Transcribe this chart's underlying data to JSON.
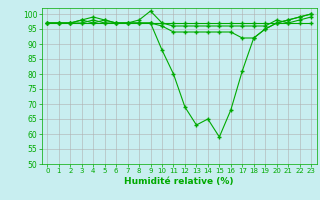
{
  "background_color": "#c8eef0",
  "grid_color": "#b0b0b0",
  "line_color": "#00aa00",
  "marker_color": "#00aa00",
  "xlabel": "Humidité relative (%)",
  "xlabel_color": "#00aa00",
  "tick_color": "#00aa00",
  "ylim": [
    50,
    102
  ],
  "xlim": [
    -0.5,
    23.5
  ],
  "yticks": [
    50,
    55,
    60,
    65,
    70,
    75,
    80,
    85,
    90,
    95,
    100
  ],
  "xticks": [
    0,
    1,
    2,
    3,
    4,
    5,
    6,
    7,
    8,
    9,
    10,
    11,
    12,
    13,
    14,
    15,
    16,
    17,
    18,
    19,
    20,
    21,
    22,
    23
  ],
  "series": [
    [
      97,
      97,
      97,
      97,
      97,
      97,
      97,
      97,
      97,
      97,
      97,
      97,
      97,
      97,
      97,
      97,
      97,
      97,
      97,
      97,
      97,
      97,
      97,
      97
    ],
    [
      97,
      97,
      97,
      98,
      97,
      98,
      97,
      97,
      98,
      101,
      97,
      96,
      96,
      96,
      96,
      96,
      96,
      96,
      96,
      96,
      98,
      97,
      98,
      99
    ],
    [
      97,
      97,
      97,
      97,
      98,
      97,
      97,
      97,
      97,
      97,
      88,
      80,
      69,
      63,
      65,
      59,
      68,
      81,
      92,
      95,
      97,
      98,
      99,
      100
    ],
    [
      97,
      97,
      97,
      98,
      99,
      98,
      97,
      97,
      97,
      97,
      96,
      94,
      94,
      94,
      94,
      94,
      94,
      92,
      92,
      95,
      97,
      98,
      99,
      100
    ]
  ]
}
